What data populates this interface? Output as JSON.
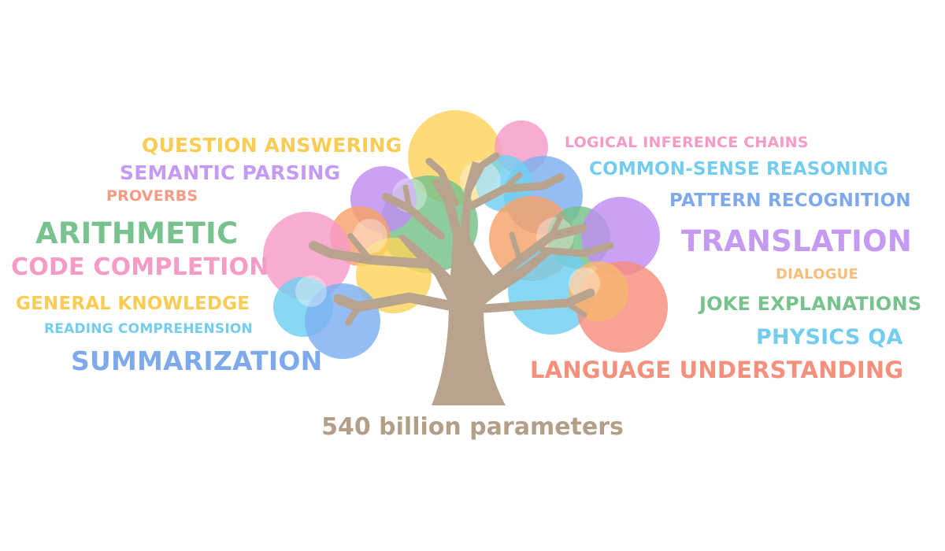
{
  "caption": "540 billion parameters",
  "colors": {
    "trunk": "#b8a48e",
    "caption": "#b39f88",
    "yellow": "#fbd35a",
    "pink": "#f59ac8",
    "purple": "#c08ef0",
    "green": "#74c18a",
    "blue": "#7cb0f0",
    "cyan": "#6fd0f0",
    "orange": "#f8a168",
    "salmon": "#f68d7e",
    "peach": "#f8b66f"
  },
  "left_labels": [
    {
      "text": "QUESTION ANSWERING",
      "color": "#fbcc54"
    },
    {
      "text": "SEMANTIC PARSING",
      "color": "#c49af2"
    },
    {
      "text": "PROVERBS",
      "color": "#f59b84"
    },
    {
      "text": "ARITHMETIC",
      "color": "#77c28d"
    },
    {
      "text": "CODE COMPLETION",
      "color": "#f59bc6"
    },
    {
      "text": "GENERAL KNOWLEDGE",
      "color": "#fbcc54"
    },
    {
      "text": "READING COMPREHENSION",
      "color": "#74cdee"
    },
    {
      "text": "SUMMARIZATION",
      "color": "#7eaaed"
    }
  ],
  "right_labels": [
    {
      "text": "LOGICAL INFERENCE CHAINS",
      "color": "#f59bc6"
    },
    {
      "text": "COMMON-SENSE REASONING",
      "color": "#74cdee"
    },
    {
      "text": "PATTERN RECOGNITION",
      "color": "#7eaaed"
    },
    {
      "text": "TRANSLATION",
      "color": "#c49af2"
    },
    {
      "text": "DIALOGUE",
      "color": "#f8bd77"
    },
    {
      "text": "JOKE EXPLANATIONS",
      "color": "#77c28d"
    },
    {
      "text": "PHYSICS QA",
      "color": "#74cdee"
    },
    {
      "text": "LANGUAGE UNDERSTANDING",
      "color": "#f6907c"
    }
  ]
}
